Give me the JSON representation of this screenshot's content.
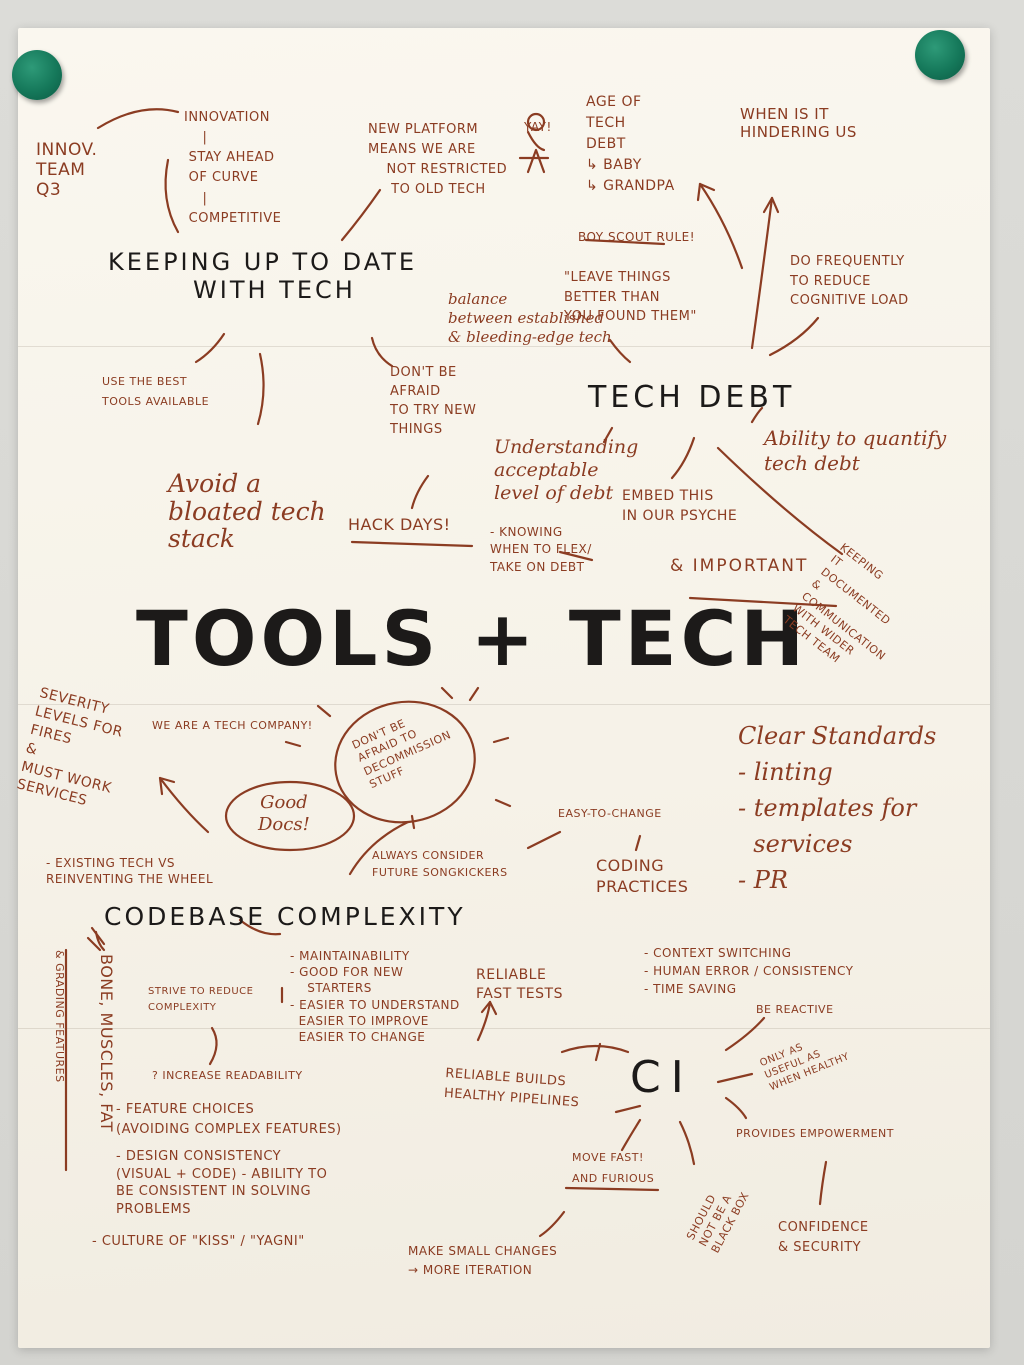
{
  "main_title": "TOOLS + TECH",
  "headings": {
    "keeping_up": "KEEPING UP TO DATE\n        WITH TECH",
    "tech_debt": "TECH DEBT",
    "codebase": "CODEBASE COMPLEXITY",
    "ci": "CI"
  },
  "notes": {
    "innov_team": "INNOV.\nTEAM\nQ3",
    "innovation": "INNOVATION\n    |\n STAY AHEAD\n OF CURVE\n    |\n COMPETITIVE",
    "new_platform": "NEW PLATFORM\nMEANS WE ARE\n    NOT RESTRICTED\n     TO OLD TECH",
    "yay": "YAY!",
    "age_of_tech": "AGE OF\nTECH\nDEBT\n↳ BABY\n↳ GRANDPA",
    "when_hindering": "WHEN IS IT\nHINDERING US",
    "scout_rule": "BOY SCOUT RULE!",
    "leave_things": "\"LEAVE THINGS\nBETTER THAN\nYOU FOUND THEM\"",
    "do_frequently": "DO FREQUENTLY\nTO REDUCE\nCOGNITIVE LOAD",
    "balance": "balance\nbetween established\n& bleeding-edge tech",
    "best_tools": "USE THE BEST\nTOOLS AVAILABLE",
    "not_afraid": "DON'T BE\nAFRAID\nTO TRY NEW\nTHINGS",
    "avoid_bloated": "Avoid a\nbloated tech\nstack",
    "hack_days": "HACK DAYS!",
    "understanding": "Understanding\nacceptable\nlevel of debt",
    "knowing": "- KNOWING\nWHEN TO FLEX/\nTAKE ON DEBT",
    "embed": "EMBED THIS\nIN OUR PSYCHE",
    "important": "& IMPORTANT",
    "quantify": "Ability to quantify\ntech debt",
    "documented": "KEEPING\nIT\nDOCUMENTED\n&\nCOMMUNICATION\nWITH WIDER\nTECH TEAM",
    "severity": "SEVERITY\nLEVELS FOR\nFIRES\n&\nMUST WORK\nSERVICES",
    "tech_company": "WE ARE A TECH COMPANY!",
    "decommission": "DON'T BE\nAFRAID TO\nDECOMMISSION\nSTUFF",
    "good_docs": "Good\nDocs!",
    "easy_change": "EASY-TO-CHANGE",
    "always_consider": "ALWAYS CONSIDER\nFUTURE SONGKICKERS",
    "coding_practices": "CODING\nPRACTICES",
    "clear_standards": "Clear Standards\n- linting\n- templates for\n  services\n- PR",
    "existing_tech": "- EXISTING TECH VS\nREINVENTING THE WHEEL",
    "bone_muscles": "BONE, MUSCLES, FAT",
    "grading": "& GRADING FEATURES",
    "strive": "STRIVE TO REDUCE\nCOMPLEXITY",
    "maintainability": "- MAINTAINABILITY\n- GOOD FOR NEW\n    STARTERS\n- EASIER TO UNDERSTAND\n  EASIER TO IMPROVE\n  EASIER TO CHANGE",
    "reliable_tests": "RELIABLE\nFAST TESTS",
    "context": "- CONTEXT SWITCHING\n- HUMAN ERROR / CONSISTENCY\n- TIME SAVING",
    "reactive": "BE REACTIVE",
    "readability": "? INCREASE READABILITY",
    "feature_choices": "- FEATURE CHOICES\n(AVOIDING COMPLEX FEATURES)",
    "design_consistency": "- DESIGN CONSISTENCY\n(VISUAL + CODE) - ABILITY TO\nBE CONSISTENT IN SOLVING\nPROBLEMS",
    "kiss": "- CULTURE OF \"KISS\" / \"YAGNI\"",
    "reliable_builds": "RELIABLE BUILDS\nHEALTHY PIPELINES",
    "only_useful": "ONLY AS\nUSEFUL AS\nWHEN HEALTHY",
    "empowerment": "PROVIDES EMPOWERMENT",
    "move_fast": "MOVE FAST!\nAND FURIOUS",
    "black_box": "SHOULD\nNOT BE A\nBLACK BOX",
    "small_changes": "MAKE SMALL CHANGES\n→ MORE ITERATION",
    "confidence": "CONFIDENCE\n& SECURITY"
  }
}
